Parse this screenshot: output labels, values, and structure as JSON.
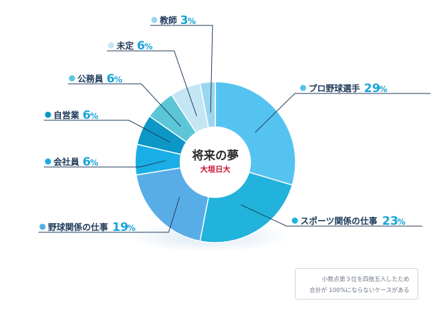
{
  "chart_data": {
    "type": "pie",
    "title": "将来の夢",
    "subtitle": "大垣日大",
    "slices": [
      {
        "label": "プロ野球選手",
        "value": 29,
        "unit": "%",
        "color": "#55c3f0"
      },
      {
        "label": "スポーツ関係の仕事",
        "value": 23,
        "unit": "%",
        "color": "#22b3dc"
      },
      {
        "label": "野球関係の仕事",
        "value": 19,
        "unit": "%",
        "color": "#59ade6"
      },
      {
        "label": "会社員",
        "value": 6,
        "unit": "%",
        "color": "#1aaee6"
      },
      {
        "label": "自営業",
        "value": 6,
        "unit": "%",
        "color": "#0c97c7"
      },
      {
        "label": "公務員",
        "value": 6,
        "unit": "%",
        "color": "#5cc6d8"
      },
      {
        "label": "未定",
        "value": 6,
        "unit": "%",
        "color": "#c4e5f3"
      },
      {
        "label": "教師",
        "value": 3,
        "unit": "%",
        "color": "#9ad6f0"
      }
    ],
    "label_color": "#1e3a5a",
    "percent_color": "#1aa3d9",
    "subtitle_color": "#c8102e"
  },
  "note": {
    "line1": "小数点第３位を四捨五入したため",
    "line2": "合計が 100%にならないケースがある"
  }
}
